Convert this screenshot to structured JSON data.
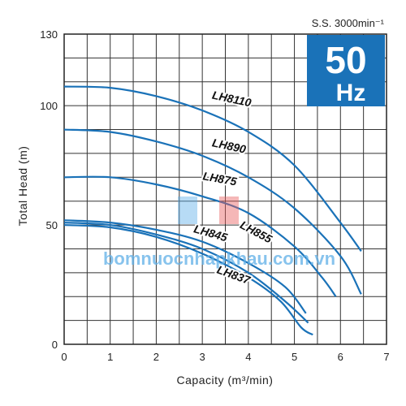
{
  "chart_data": {
    "type": "line",
    "xlabel": "Capacity (m³/min)",
    "ylabel": "Total Head (m)",
    "xlim": [
      0,
      7
    ],
    "ylim": [
      0,
      130
    ],
    "x_ticks": [
      "0",
      "1",
      "2",
      "3",
      "4",
      "5",
      "6",
      "7"
    ],
    "y_ticks": [
      "0",
      "50",
      "100",
      "130"
    ],
    "y_tick_values": [
      0,
      50,
      100,
      130
    ],
    "grid": true,
    "speed_label": "S.S. 3000min⁻¹",
    "badge": {
      "value": "50",
      "unit": "Hz",
      "color": "#1a72b8"
    },
    "line_color": "#1a72b8",
    "watermark": "bomnuocnhapkhau.com.vn",
    "series": [
      {
        "name": "LH8110",
        "label_at": [
          3.2,
          103
        ],
        "label_rotate": 12,
        "points": [
          [
            0,
            108
          ],
          [
            1,
            107.5
          ],
          [
            2,
            104
          ],
          [
            3,
            98
          ],
          [
            4,
            89
          ],
          [
            5,
            75
          ],
          [
            6,
            51
          ],
          [
            6.45,
            39
          ]
        ]
      },
      {
        "name": "LH890",
        "label_at": [
          3.2,
          83
        ],
        "label_rotate": 12,
        "points": [
          [
            0,
            90
          ],
          [
            1,
            89
          ],
          [
            2,
            85
          ],
          [
            3,
            79
          ],
          [
            4,
            70
          ],
          [
            5,
            57
          ],
          [
            6,
            37
          ],
          [
            6.45,
            21
          ]
        ]
      },
      {
        "name": "LH875",
        "label_at": [
          3.0,
          69
        ],
        "label_rotate": 10,
        "points": [
          [
            0,
            70
          ],
          [
            1,
            70
          ],
          [
            2,
            67
          ],
          [
            3,
            62
          ],
          [
            4,
            55
          ],
          [
            5,
            41
          ],
          [
            5.6,
            28
          ],
          [
            5.9,
            20
          ]
        ]
      },
      {
        "name": "LH855",
        "label_at": [
          3.8,
          49
        ],
        "label_rotate": 28,
        "points": [
          [
            0,
            52
          ],
          [
            1,
            51
          ],
          [
            2,
            48
          ],
          [
            3,
            43
          ],
          [
            4,
            34
          ],
          [
            4.8,
            24
          ],
          [
            5.25,
            13
          ]
        ]
      },
      {
        "name": "LH845",
        "label_at": [
          2.8,
          47
        ],
        "label_rotate": 16,
        "points": [
          [
            0,
            51
          ],
          [
            1,
            50
          ],
          [
            2,
            46
          ],
          [
            3,
            40
          ],
          [
            4,
            30
          ],
          [
            4.8,
            18
          ],
          [
            5.3,
            9
          ]
        ]
      },
      {
        "name": "LH837",
        "label_at": [
          3.3,
          30
        ],
        "label_rotate": 20,
        "points": [
          [
            0,
            50
          ],
          [
            1,
            49
          ],
          [
            2,
            45
          ],
          [
            3,
            38
          ],
          [
            4,
            28
          ],
          [
            4.7,
            18
          ],
          [
            5.15,
            7
          ],
          [
            5.4,
            4
          ]
        ]
      }
    ]
  }
}
